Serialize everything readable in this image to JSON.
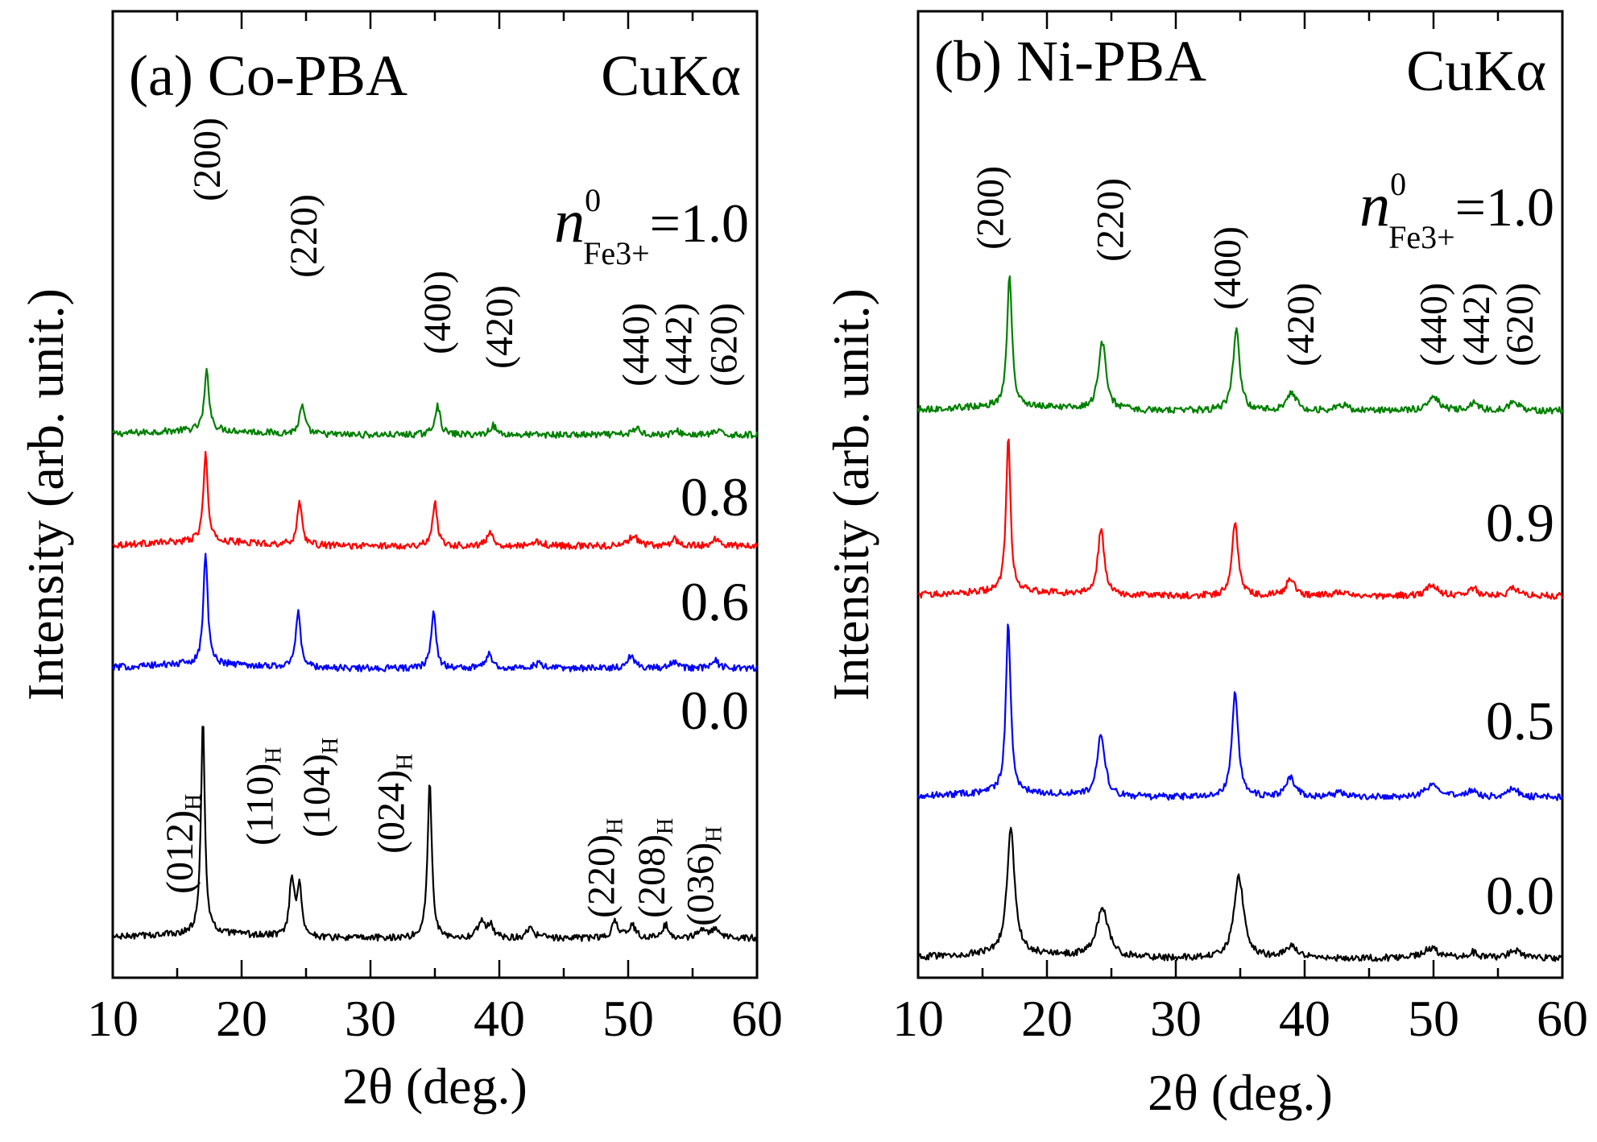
{
  "chart_data": [
    {
      "type": "line",
      "panel": "a",
      "title": "(a) Co-PBA",
      "radiation": "CuKα",
      "xlabel": "2θ (deg.)",
      "ylabel": "Intensity (arb. unit.)",
      "xlim": [
        10,
        60
      ],
      "xticks": [
        10,
        20,
        30,
        40,
        50,
        60
      ],
      "x_sign": "n",
      "x_sup": "0",
      "x_sub": "Fe3+",
      "series": [
        {
          "name": "=1.0",
          "color": "#008000",
          "offset": 5.1,
          "peaks": [
            [
              17.3,
              1.6,
              0.22
            ],
            [
              24.7,
              0.75,
              0.25
            ],
            [
              35.2,
              0.8,
              0.25
            ],
            [
              39.5,
              0.25,
              0.3
            ],
            [
              50.7,
              0.18,
              0.35
            ],
            [
              53.8,
              0.1,
              0.3
            ],
            [
              56.9,
              0.1,
              0.3
            ]
          ]
        },
        {
          "name": "0.8",
          "color": "#ff0000",
          "offset": 3.8,
          "peaks": [
            [
              17.2,
              2.4,
              0.2
            ],
            [
              24.5,
              1.2,
              0.22
            ],
            [
              35.0,
              1.2,
              0.22
            ],
            [
              39.3,
              0.35,
              0.3
            ],
            [
              43.1,
              0.12,
              0.4
            ],
            [
              50.4,
              0.3,
              0.35
            ],
            [
              53.6,
              0.2,
              0.3
            ],
            [
              56.8,
              0.2,
              0.3
            ]
          ]
        },
        {
          "name": "0.6",
          "color": "#0000ff",
          "offset": 2.4,
          "peaks": [
            [
              17.2,
              3.0,
              0.2
            ],
            [
              24.4,
              1.55,
              0.22
            ],
            [
              34.9,
              1.6,
              0.22
            ],
            [
              39.2,
              0.4,
              0.3
            ],
            [
              43.0,
              0.12,
              0.4
            ],
            [
              50.2,
              0.35,
              0.35
            ],
            [
              53.5,
              0.2,
              0.3
            ],
            [
              56.7,
              0.25,
              0.3
            ]
          ]
        },
        {
          "name": "0.0",
          "color": "#000000",
          "offset": 0.0,
          "peaks": [
            [
              17.0,
              5.8,
              0.18
            ],
            [
              23.9,
              1.6,
              0.22
            ],
            [
              24.5,
              1.3,
              0.22
            ],
            [
              34.6,
              4.2,
              0.2
            ],
            [
              38.6,
              0.45,
              0.3
            ],
            [
              39.3,
              0.35,
              0.3
            ],
            [
              42.4,
              0.25,
              0.35
            ],
            [
              49.0,
              0.45,
              0.3
            ],
            [
              50.3,
              0.35,
              0.3
            ],
            [
              52.9,
              0.35,
              0.3
            ],
            [
              55.8,
              0.25,
              0.35
            ],
            [
              56.8,
              0.25,
              0.35
            ]
          ]
        }
      ],
      "peak_labels_top": [
        {
          "text": "(200)",
          "x": 17.3
        },
        {
          "text": "(220)",
          "x": 24.8
        },
        {
          "text": "(400)",
          "x": 35.2
        },
        {
          "text": "(420)",
          "x": 40.0
        },
        {
          "text": "(440)",
          "x": 50.6
        },
        {
          "text": "(442)",
          "x": 53.9
        },
        {
          "text": "(620)",
          "x": 57.4
        }
      ],
      "peak_labels_bottom": [
        {
          "text": "(012)",
          "sub": "H",
          "x": 15.2
        },
        {
          "text": "(110)",
          "sub": "H",
          "x": 21.4
        },
        {
          "text": "(104)",
          "sub": "H",
          "x": 25.8
        },
        {
          "text": "(024)",
          "sub": "H",
          "x": 31.6
        },
        {
          "text": "(220)",
          "sub": "H",
          "x": 47.9
        },
        {
          "text": "(208)",
          "sub": "H",
          "x": 51.8
        },
        {
          "text": "(036)",
          "sub": "H",
          "x": 55.6
        }
      ]
    },
    {
      "type": "line",
      "panel": "b",
      "title": "(b) Ni-PBA",
      "radiation": "CuKα",
      "xlabel": "2θ (deg.)",
      "ylabel": "Intensity (arb. unit.)",
      "xlim": [
        10,
        60
      ],
      "xticks": [
        10,
        20,
        30,
        40,
        50,
        60
      ],
      "x_sign": "n",
      "x_sup": "0",
      "x_sub": "Fe3+",
      "series": [
        {
          "name": "=1.0",
          "color": "#008000",
          "offset": 5.1,
          "peaks": [
            [
              17.1,
              3.6,
              0.22
            ],
            [
              24.3,
              1.8,
              0.35
            ],
            [
              34.7,
              2.2,
              0.3
            ],
            [
              39.0,
              0.5,
              0.4
            ],
            [
              42.9,
              0.15,
              0.5
            ],
            [
              50.0,
              0.35,
              0.55
            ],
            [
              53.1,
              0.22,
              0.35
            ],
            [
              56.3,
              0.25,
              0.45
            ]
          ]
        },
        {
          "name": "0.9",
          "color": "#ff0000",
          "offset": 3.1,
          "peaks": [
            [
              17.0,
              4.2,
              0.2
            ],
            [
              24.2,
              1.8,
              0.3
            ],
            [
              34.6,
              2.0,
              0.28
            ],
            [
              38.9,
              0.5,
              0.35
            ],
            [
              42.8,
              0.12,
              0.5
            ],
            [
              49.9,
              0.3,
              0.5
            ],
            [
              53.1,
              0.2,
              0.35
            ],
            [
              56.2,
              0.2,
              0.4
            ]
          ]
        },
        {
          "name": "0.5",
          "color": "#0000ff",
          "offset": 1.4,
          "peaks": [
            [
              17.0,
              4.6,
              0.22
            ],
            [
              24.2,
              1.7,
              0.35
            ],
            [
              34.6,
              2.8,
              0.3
            ],
            [
              38.9,
              0.5,
              0.45
            ],
            [
              42.7,
              0.12,
              0.5
            ],
            [
              49.9,
              0.35,
              0.6
            ],
            [
              53.0,
              0.2,
              0.35
            ],
            [
              56.2,
              0.25,
              0.45
            ]
          ]
        },
        {
          "name": "0.0",
          "color": "#000000",
          "offset": 0.0,
          "peaks": [
            [
              17.2,
              3.4,
              0.35
            ],
            [
              24.3,
              1.3,
              0.55
            ],
            [
              34.9,
              2.2,
              0.45
            ],
            [
              39.0,
              0.3,
              0.6
            ],
            [
              49.8,
              0.25,
              0.8
            ],
            [
              53.0,
              0.15,
              0.4
            ],
            [
              56.3,
              0.2,
              0.6
            ]
          ]
        }
      ],
      "peak_labels_top": [
        {
          "text": "(200)",
          "x": 15.6
        },
        {
          "text": "(220)",
          "x": 24.9
        },
        {
          "text": "(400)",
          "x": 34.0
        },
        {
          "text": "(420)",
          "x": 39.7
        },
        {
          "text": "(440)",
          "x": 50.0
        },
        {
          "text": "(442)",
          "x": 53.3
        },
        {
          "text": "(620)",
          "x": 56.7
        }
      ]
    }
  ]
}
